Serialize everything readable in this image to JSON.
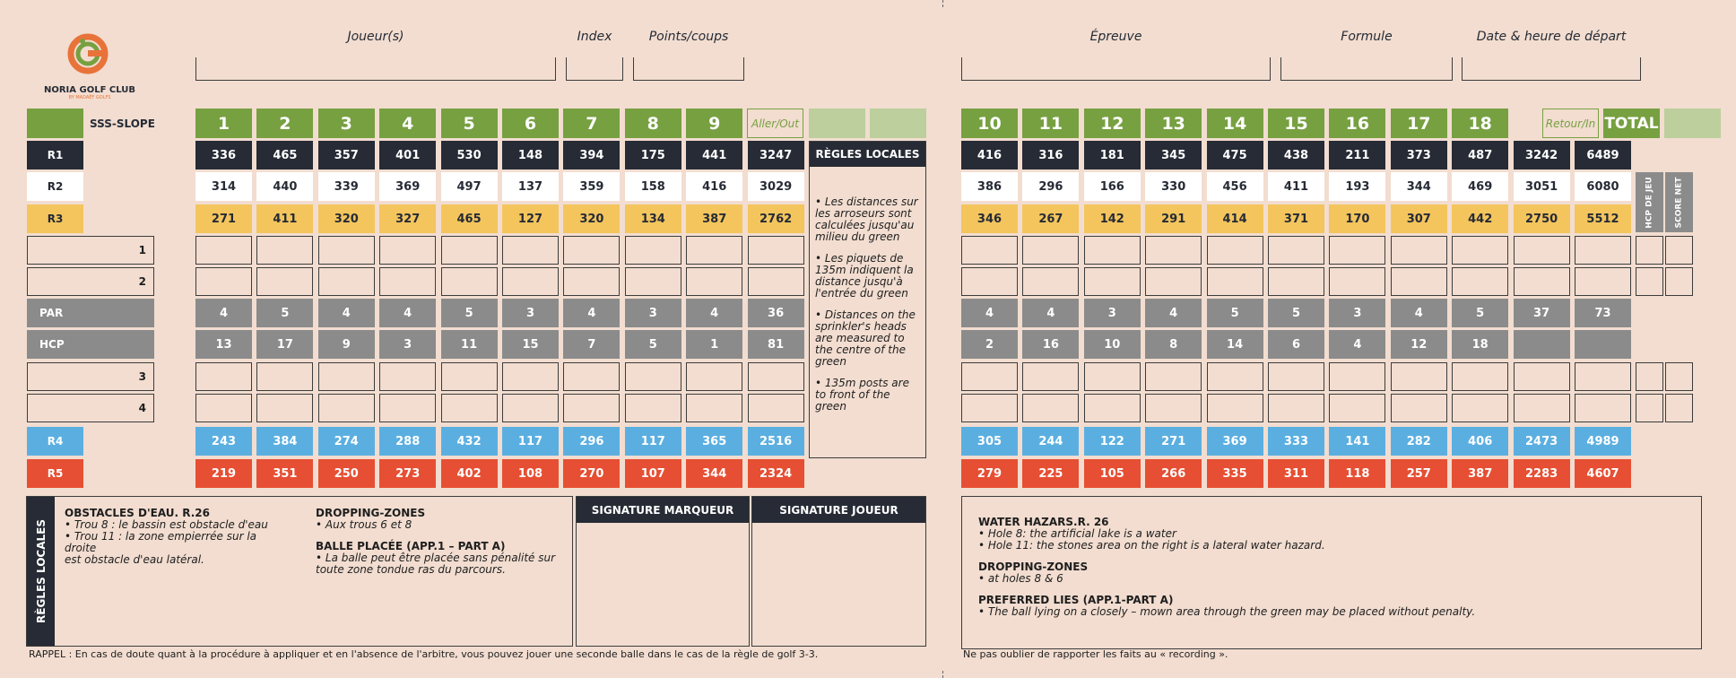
{
  "logo": {
    "name": "NORIA GOLF CLUB",
    "sub": "BY MADAËF GOLFS"
  },
  "header": {
    "players": "Joueur(s)",
    "index": "Index",
    "points": "Points/coups",
    "event": "Épreuve",
    "formula": "Formule",
    "start": "Date & heure de départ"
  },
  "labels": {
    "sss": "SSS-SLOPE",
    "r1": "R1",
    "r2": "R2",
    "r3": "R3",
    "p1": "1",
    "p2": "2",
    "par": "PAR",
    "hcp": "HCP",
    "p3": "3",
    "p4": "4",
    "r4": "R4",
    "r5": "R5",
    "aller": "Aller/Out",
    "retour": "Retour/In",
    "total": "TOTAL",
    "hcp_jeu": "HCP DE JEU",
    "score_net": "SCORE NET"
  },
  "front": {
    "holes": [
      "1",
      "2",
      "3",
      "4",
      "5",
      "6",
      "7",
      "8",
      "9"
    ],
    "r1": [
      "336",
      "465",
      "357",
      "401",
      "530",
      "148",
      "394",
      "175",
      "441",
      "3247"
    ],
    "r2": [
      "314",
      "440",
      "339",
      "369",
      "497",
      "137",
      "359",
      "158",
      "416",
      "3029"
    ],
    "r3": [
      "271",
      "411",
      "320",
      "327",
      "465",
      "127",
      "320",
      "134",
      "387",
      "2762"
    ],
    "par": [
      "4",
      "5",
      "4",
      "4",
      "5",
      "3",
      "4",
      "3",
      "4",
      "36"
    ],
    "hcp": [
      "13",
      "17",
      "9",
      "3",
      "11",
      "15",
      "7",
      "5",
      "1",
      "81"
    ],
    "r4": [
      "243",
      "384",
      "274",
      "288",
      "432",
      "117",
      "296",
      "117",
      "365",
      "2516"
    ],
    "r5": [
      "219",
      "351",
      "250",
      "273",
      "402",
      "108",
      "270",
      "107",
      "344",
      "2324"
    ]
  },
  "back": {
    "holes": [
      "10",
      "11",
      "12",
      "13",
      "14",
      "15",
      "16",
      "17",
      "18"
    ],
    "r1": [
      "416",
      "316",
      "181",
      "345",
      "475",
      "438",
      "211",
      "373",
      "487",
      "3242",
      "6489"
    ],
    "r2": [
      "386",
      "296",
      "166",
      "330",
      "456",
      "411",
      "193",
      "344",
      "469",
      "3051",
      "6080"
    ],
    "r3": [
      "346",
      "267",
      "142",
      "291",
      "414",
      "371",
      "170",
      "307",
      "442",
      "2750",
      "5512"
    ],
    "par": [
      "4",
      "4",
      "3",
      "4",
      "5",
      "5",
      "3",
      "4",
      "5",
      "37",
      "73"
    ],
    "hcp": [
      "2",
      "16",
      "10",
      "8",
      "14",
      "6",
      "4",
      "12",
      "18",
      "",
      ""
    ],
    "r4": [
      "305",
      "244",
      "122",
      "271",
      "369",
      "333",
      "141",
      "282",
      "406",
      "2473",
      "4989"
    ],
    "r5": [
      "279",
      "225",
      "105",
      "266",
      "335",
      "311",
      "118",
      "257",
      "387",
      "2283",
      "4607"
    ]
  },
  "rules_panel": {
    "title": "RÈGLES LOCALES",
    "items": [
      "• Les distances sur les arroseurs sont calculées jusqu'au milieu du green",
      "• Les piquets de 135m indiquent la distance jusqu'à l'entrée du green",
      "• Distances on the sprinkler's heads are measured to the centre of the green",
      "• 135m posts are to front of the green"
    ]
  },
  "local_rules": {
    "side_label": "RÈGLES LOCALES",
    "water_title": "OBSTACLES D'EAU. R.26",
    "water_1": "• Trou 8 : le bassin est obstacle d'eau",
    "water_2": "• Trou 11 : la zone empierrée sur la droite",
    "water_3": "est obstacle d'eau latéral.",
    "drop_title": "DROPPING-ZONES",
    "drop_1": "• Aux  trous 6 et 8",
    "placed_title": "BALLE PLACÉE (APP.1 – PART A)",
    "placed_1": "• La balle peut être placée sans pénalité sur",
    "placed_2": "toute zone tondue ras du parcours."
  },
  "signatures": {
    "marker": "SIGNATURE MARQUEUR",
    "player": "SIGNATURE JOUEUR"
  },
  "english_rules": {
    "water_title": "WATER HAZARS.R. 26",
    "water_1": "• Hole 8: the artificial lake is a water",
    "water_2": "• Hole 11: the stones area on the right is a lateral water hazard.",
    "drop_title": "DROPPING-ZONES",
    "drop_1": "• at holes 8 & 6",
    "lies_title": "PREFERRED LIES (APP.1-PART A)",
    "lies_1": "• The ball lying on a closely – mown area through the green may be placed without penalty."
  },
  "footer": {
    "left": "RAPPEL : En cas de doute quant à la procédure à appliquer et en l'absence de l'arbitre, vous pouvez jouer une seconde balle dans le cas de la règle de golf 3-3.",
    "right": "Ne pas oublier de rapporter les faits au « recording »."
  },
  "colors": {
    "green": "#77a041",
    "black": "#262b35",
    "yellow": "#f4c55d",
    "grey": "#8b8b8b",
    "blue": "#5bafe0",
    "red": "#e64f33",
    "background": "#f2ddd0"
  }
}
